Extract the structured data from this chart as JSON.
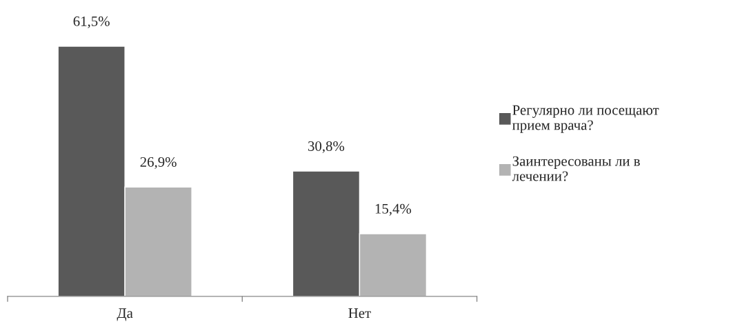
{
  "chart_data": {
    "type": "bar",
    "categories": [
      "Да",
      "Нет"
    ],
    "series": [
      {
        "name": "Регулярно ли посещают\nприем врача?",
        "color": "#595959",
        "values": [
          61.5,
          30.8
        ],
        "value_labels": [
          "61,5%",
          "30,8%"
        ]
      },
      {
        "name": "Заинтересованы ли в\nлечении?",
        "color": "#b3b3b3",
        "values": [
          26.9,
          15.4
        ],
        "value_labels": [
          "26,9%",
          "15,4%"
        ]
      }
    ],
    "legend": "right",
    "grid": false
  }
}
